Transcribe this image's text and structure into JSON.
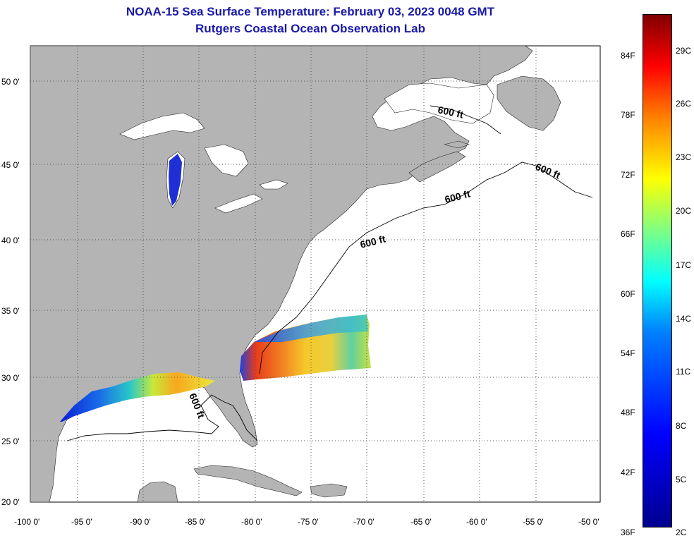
{
  "title": {
    "line1": "NOAA-15 Sea Surface Temperature:  February 03, 2023 0048 GMT",
    "line2": "Rutgers Coastal Ocean Observation Lab"
  },
  "axes": {
    "lat_labels": [
      "50 0'",
      "45 0'",
      "40 0'",
      "35 0'",
      "30 0'",
      "25 0'",
      "20 0'"
    ],
    "lon_labels": [
      "-100 0'",
      "-95 0'",
      "-90 0'",
      "-85 0'",
      "-80 0'",
      "-75 0'",
      "-70 0'",
      "-65 0'",
      "-60 0'",
      "-55 0'",
      "-50 0'"
    ]
  },
  "contour_labels": [
    "600 ft",
    "600 ft",
    "600 ft",
    "600 ft",
    "600 ft"
  ],
  "colorbar": {
    "f_labels": [
      "84F",
      "78F",
      "72F",
      "66F",
      "60F",
      "54F",
      "48F",
      "42F",
      "36F"
    ],
    "c_labels": [
      "29C",
      "26C",
      "23C",
      "20C",
      "17C",
      "14C",
      "11C",
      "8C",
      "5C",
      "2C"
    ]
  },
  "colors": {
    "land": "#b4b4b4",
    "ocean": "#ffffff",
    "title": "#1a1aa8",
    "grid": "#555555"
  }
}
